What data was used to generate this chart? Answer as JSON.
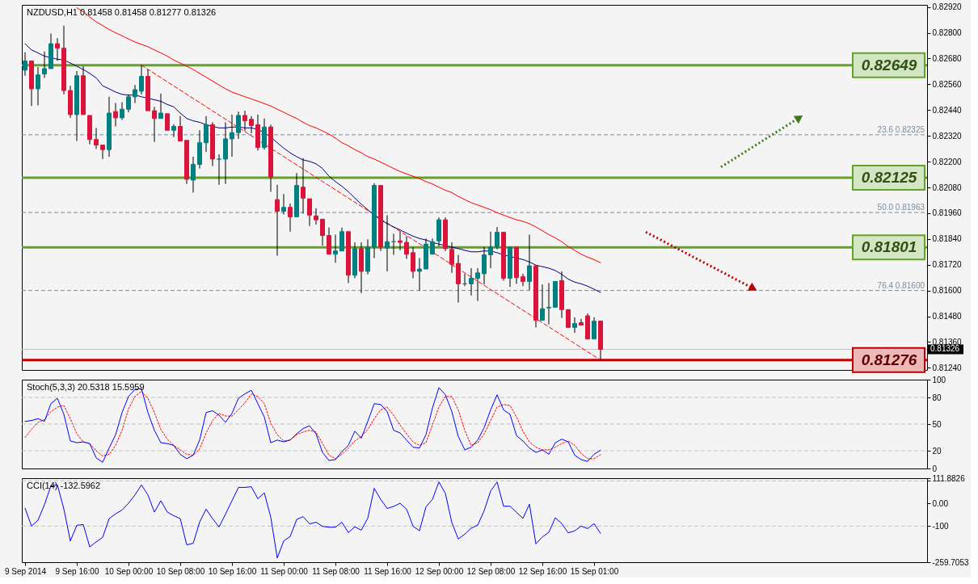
{
  "chart_data": [
    {
      "type": "candlestick",
      "title": "NZDUSD,H1 0.81458 0.81458 0.81277 0.81326",
      "categories": [
        null,
        null,
        null,
        null,
        null,
        null,
        null,
        null,
        null,
        null,
        null,
        null,
        null,
        null,
        null,
        null,
        null,
        null,
        null,
        null,
        null,
        null,
        null,
        null,
        null,
        null,
        null,
        null,
        null,
        null,
        null,
        null,
        null,
        null,
        null,
        null,
        null,
        null,
        null,
        null,
        null,
        null,
        null,
        null,
        null,
        null,
        null,
        null,
        null,
        null,
        null,
        null,
        null,
        null,
        null,
        null,
        null,
        null,
        null,
        null,
        null,
        null,
        null,
        null,
        null,
        null,
        null,
        null,
        null,
        null,
        null,
        null,
        null,
        null,
        null,
        null,
        null,
        null,
        null,
        null,
        null,
        null,
        null,
        null,
        null,
        null,
        null,
        null,
        null,
        null
      ],
      "ohlc": [
        [
          0.82626,
          0.82709,
          0.826,
          0.82669
        ],
        [
          0.82669,
          0.82669,
          0.82459,
          0.82539
        ],
        [
          0.82539,
          0.8264,
          0.82462,
          0.82604
        ],
        [
          0.82608,
          0.82713,
          0.8259,
          0.82633
        ],
        [
          0.82633,
          0.82796,
          0.82633,
          0.82749
        ],
        [
          0.82749,
          0.82775,
          0.82669,
          0.82728
        ],
        [
          0.82728,
          0.82833,
          0.82513,
          0.82531
        ],
        [
          0.82531,
          0.82553,
          0.82404,
          0.82419
        ],
        [
          0.82419,
          0.82622,
          0.82296,
          0.826
        ],
        [
          0.826,
          0.82644,
          0.82419,
          0.82419
        ],
        [
          0.82415,
          0.82415,
          0.82281,
          0.82303
        ],
        [
          0.82303,
          0.82357,
          0.82259,
          0.82277
        ],
        [
          0.82277,
          0.82277,
          0.82212,
          0.82256
        ],
        [
          0.82256,
          0.82502,
          0.82223,
          0.82426
        ],
        [
          0.82433,
          0.82473,
          0.82364,
          0.82404
        ],
        [
          0.82404,
          0.82477,
          0.82394,
          0.82444
        ],
        [
          0.82444,
          0.82513,
          0.8243,
          0.82502
        ],
        [
          0.82502,
          0.82557,
          0.82473,
          0.82535
        ],
        [
          0.82528,
          0.82649,
          0.82513,
          0.82597
        ],
        [
          0.82597,
          0.82629,
          0.82437,
          0.82437
        ],
        [
          0.82437,
          0.82455,
          0.82292,
          0.82401
        ],
        [
          0.82401,
          0.82517,
          0.82401,
          0.82426
        ],
        [
          0.82423,
          0.82423,
          0.82346,
          0.82346
        ],
        [
          0.82346,
          0.82374,
          0.82314,
          0.82364
        ],
        [
          0.82364,
          0.82412,
          0.82296,
          0.82296
        ],
        [
          0.82299,
          0.82299,
          0.82096,
          0.82118
        ],
        [
          0.82114,
          0.82223,
          0.82056,
          0.82187
        ],
        [
          0.82187,
          0.82346,
          0.82168,
          0.82288
        ],
        [
          0.82288,
          0.82412,
          0.82245,
          0.82372
        ],
        [
          0.82372,
          0.82383,
          0.82179,
          0.82212
        ],
        [
          0.82212,
          0.82234,
          0.82092,
          0.82212
        ],
        [
          0.82212,
          0.82383,
          0.82096,
          0.82306
        ],
        [
          0.82306,
          0.82419,
          0.82223,
          0.82335
        ],
        [
          0.82335,
          0.82433,
          0.82306,
          0.82415
        ],
        [
          0.82415,
          0.82437,
          0.82343,
          0.8239
        ],
        [
          0.82397,
          0.82412,
          0.82332,
          0.82368
        ],
        [
          0.82372,
          0.82419,
          0.82252,
          0.82266
        ],
        [
          0.82266,
          0.82401,
          0.82256,
          0.82361
        ],
        [
          0.82361,
          0.82372,
          0.8206,
          0.82129
        ],
        [
          0.82023,
          0.82092,
          0.81762,
          0.81969
        ],
        [
          0.81969,
          0.82049,
          0.81954,
          0.81987
        ],
        [
          0.81987,
          0.82005,
          0.81874,
          0.81943
        ],
        [
          0.81943,
          0.82147,
          0.81943,
          0.82089
        ],
        [
          0.82081,
          0.82216,
          0.81958,
          0.8203
        ],
        [
          0.82027,
          0.82027,
          0.819,
          0.81951
        ],
        [
          0.81947,
          0.81983,
          0.81907,
          0.81929
        ],
        [
          0.81932,
          0.81932,
          0.81809,
          0.81856
        ],
        [
          0.81856,
          0.81893,
          0.81769,
          0.81769
        ],
        [
          0.81769,
          0.8186,
          0.81729,
          0.81784
        ],
        [
          0.81784,
          0.81893,
          0.81784,
          0.81874
        ],
        [
          0.81874,
          0.81874,
          0.81635,
          0.81671
        ],
        [
          0.81671,
          0.81824,
          0.81657,
          0.81795
        ],
        [
          0.81795,
          0.81824,
          0.81588,
          0.81689
        ],
        [
          0.81689,
          0.81838,
          0.81675,
          0.81802
        ],
        [
          0.81802,
          0.82099,
          0.81751,
          0.82089
        ],
        [
          0.82089,
          0.82089,
          0.81784,
          0.81802
        ],
        [
          0.81798,
          0.81951,
          0.81689,
          0.81827
        ],
        [
          0.81827,
          0.81864,
          0.81766,
          0.81827
        ],
        [
          0.81831,
          0.81874,
          0.81787,
          0.81824
        ],
        [
          0.81824,
          0.81853,
          0.81747,
          0.81769
        ],
        [
          0.81776,
          0.81802,
          0.81657,
          0.81689
        ],
        [
          0.81689,
          0.81751,
          0.81599,
          0.817
        ],
        [
          0.817,
          0.81842,
          0.817,
          0.81816
        ],
        [
          0.81769,
          0.81842,
          0.81769,
          0.81827
        ],
        [
          0.81831,
          0.8194,
          0.81805,
          0.81929
        ],
        [
          0.81929,
          0.8194,
          0.81784,
          0.81795
        ],
        [
          0.81791,
          0.81824,
          0.81682,
          0.81722
        ],
        [
          0.81726,
          0.81766,
          0.81544,
          0.81631
        ],
        [
          0.81631,
          0.81678,
          0.8162,
          0.81631
        ],
        [
          0.81631,
          0.81704,
          0.81577,
          0.81657
        ],
        [
          0.81657,
          0.81704,
          0.81551,
          0.81682
        ],
        [
          0.81678,
          0.81802,
          0.81628,
          0.81766
        ],
        [
          0.81766,
          0.81874,
          0.81704,
          0.81802
        ],
        [
          0.81802,
          0.81896,
          0.81792,
          0.81871
        ],
        [
          0.81871,
          0.81871,
          0.81646,
          0.81657
        ],
        [
          0.81657,
          0.81802,
          0.81617,
          0.81802
        ],
        [
          0.81802,
          0.81802,
          0.81631,
          0.8166
        ],
        [
          0.81664,
          0.81678,
          0.8162,
          0.81642
        ],
        [
          0.81642,
          0.8186,
          0.81602,
          0.81715
        ],
        [
          0.81715,
          0.81715,
          0.81428,
          0.81461
        ],
        [
          0.81461,
          0.81628,
          0.81461,
          0.81515
        ],
        [
          0.81519,
          0.81635,
          0.81442,
          0.81522
        ],
        [
          0.81522,
          0.81642,
          0.81522,
          0.81642
        ],
        [
          0.81646,
          0.81689,
          0.81472,
          0.81511
        ],
        [
          0.81511,
          0.81511,
          0.81428,
          0.81428
        ],
        [
          0.81428,
          0.81475,
          0.81403,
          0.81446
        ],
        [
          0.8145,
          0.81468,
          0.81439,
          0.81439
        ],
        [
          0.81482,
          0.81493,
          0.81374,
          0.81374
        ],
        [
          0.81374,
          0.81475,
          0.81374,
          0.81457
        ],
        [
          0.81458,
          0.81458,
          0.81277,
          0.81326
        ]
      ],
      "colors": [
        "#008080",
        "#dc143c",
        "#008080",
        "#008080",
        "#008080",
        "#dc143c",
        "#dc143c",
        "#dc143c",
        "#008080",
        "#dc143c",
        "#dc143c",
        "#dc143c",
        "#dc143c",
        "#008080",
        "#dc143c",
        "#008080",
        "#008080",
        "#008080",
        "#008080",
        "#dc143c",
        "#dc143c",
        "#008080",
        "#dc143c",
        "#008080",
        "#dc143c",
        "#dc143c",
        "#008080",
        "#008080",
        "#008080",
        "#dc143c",
        "#008080",
        "#008080",
        "#008080",
        "#008080",
        "#dc143c",
        "#dc143c",
        "#dc143c",
        "#008080",
        "#dc143c",
        "#dc143c",
        "#008080",
        "#dc143c",
        "#008080",
        "#dc143c",
        "#dc143c",
        "#dc143c",
        "#dc143c",
        "#dc143c",
        "#008080",
        "#008080",
        "#dc143c",
        "#008080",
        "#dc143c",
        "#008080",
        "#008080",
        "#dc143c",
        "#008080",
        "#008080",
        "#dc143c",
        "#dc143c",
        "#dc143c",
        "#008080",
        "#008080",
        "#008080",
        "#008080",
        "#dc143c",
        "#dc143c",
        "#dc143c",
        "#008080",
        "#008080",
        "#008080",
        "#008080",
        "#008080",
        "#008080",
        "#dc143c",
        "#008080",
        "#dc143c",
        "#dc143c",
        "#008080",
        "#dc143c",
        "#008080",
        "#008080",
        "#008080",
        "#dc143c",
        "#dc143c",
        "#008080",
        "#dc143c",
        "#dc143c",
        "#008080",
        "#dc143c"
      ],
      "series": [
        {
          "type": "line",
          "color": "#000080",
          "values": [
            0.82749,
            0.8272,
            0.82706,
            0.82691,
            0.82684,
            0.82677,
            0.82673,
            0.82659,
            0.82644,
            0.82629,
            0.82611,
            0.8259,
            0.82553,
            0.82539,
            0.82524,
            0.82513,
            0.8251,
            0.8251,
            0.82502,
            0.82495,
            0.82488,
            0.82481,
            0.82466,
            0.82455,
            0.82426,
            0.82401,
            0.8239,
            0.82383,
            0.82372,
            0.82364,
            0.82357,
            0.82357,
            0.82361,
            0.82361,
            0.82357,
            0.82357,
            0.8235,
            0.82335,
            0.82314,
            0.82288,
            0.82263,
            0.82241,
            0.82223,
            0.82208,
            0.82201,
            0.8219,
            0.82168,
            0.82132,
            0.82107,
            0.82085,
            0.8206,
            0.8203,
            0.82002,
            0.81976,
            0.81951,
            0.81929,
            0.81911,
            0.81896,
            0.81882,
            0.81867,
            0.81853,
            0.81842,
            0.81835,
            0.81824,
            0.81816,
            0.81809,
            0.81802,
            0.81795,
            0.81787,
            0.8178,
            0.8178,
            0.81784,
            0.81784,
            0.81776,
            0.81766,
            0.81758,
            0.81751,
            0.81744,
            0.81733,
            0.81718,
            0.81711,
            0.81704,
            0.81693,
            0.81675,
            0.81653,
            0.81639,
            0.81631,
            0.8162,
            0.81606,
            0.81591
          ]
        },
        {
          "type": "line",
          "color": "#ff0000",
          "values": [
            null,
            null,
            null,
            null,
            null,
            null,
            null,
            null,
            0.82916,
            0.82898,
            0.82873,
            0.82851,
            0.82833,
            0.82815,
            0.828,
            0.82786,
            0.82771,
            0.82757,
            0.82746,
            0.82735,
            0.8272,
            0.82706,
            0.82691,
            0.82673,
            0.82659,
            0.82644,
            0.82629,
            0.82611,
            0.82593,
            0.82575,
            0.82557,
            0.82539,
            0.82524,
            0.82513,
            0.82502,
            0.82492,
            0.82481,
            0.8247,
            0.82459,
            0.82444,
            0.8243,
            0.82415,
            0.82401,
            0.82383,
            0.82368,
            0.82357,
            0.82343,
            0.82328,
            0.8231,
            0.82288,
            0.82274,
            0.82256,
            0.82241,
            0.82223,
            0.82212,
            0.82198,
            0.82183,
            0.82168,
            0.82154,
            0.82143,
            0.82132,
            0.82121,
            0.82107,
            0.82096,
            0.82081,
            0.82067,
            0.82056,
            0.82038,
            0.82023,
            0.82009,
            0.81998,
            0.81987,
            0.81976,
            0.81962,
            0.81951,
            0.8194,
            0.81929,
            0.81922,
            0.81911,
            0.81896,
            0.81878,
            0.8186,
            0.81845,
            0.81827,
            0.81805,
            0.81787,
            0.81769,
            0.81755,
            0.81744,
            0.81729
          ]
        },
        {
          "type": "line",
          "color": "#ff0000",
          "line_style": "dashed",
          "values": [
            null,
            null,
            null,
            null,
            null,
            null,
            null,
            null,
            null,
            null,
            null,
            null,
            null,
            null,
            null,
            null,
            null,
            null,
            0.82649,
            null,
            null,
            null,
            null,
            null,
            null,
            null,
            null,
            null,
            null,
            null,
            null,
            null,
            null,
            null,
            null,
            null,
            null,
            null,
            null,
            null,
            null,
            null,
            null,
            null,
            null,
            null,
            null,
            null,
            null,
            null,
            null,
            null,
            null,
            null,
            null,
            null,
            null,
            null,
            null,
            null,
            null,
            null,
            null,
            null,
            null,
            null,
            null,
            null,
            null,
            null,
            null,
            null,
            null,
            null,
            null,
            null,
            null,
            null,
            null,
            null,
            null,
            null,
            null,
            null,
            null,
            null,
            null,
            null,
            null,
            0.81276
          ]
        }
      ],
      "ylim": [
        0.8123,
        0.8293
      ],
      "yticks": [
        {
          "value": 0.8292,
          "label": "0.82920"
        },
        {
          "value": 0.828,
          "label": "0.82800"
        },
        {
          "value": 0.8268,
          "label": "0.82680"
        },
        {
          "value": 0.8256,
          "label": "0.82560"
        },
        {
          "value": 0.8244,
          "label": "0.82440"
        },
        {
          "value": 0.8232,
          "label": "0.82320"
        },
        {
          "value": 0.822,
          "label": "0.82200"
        },
        {
          "value": 0.8208,
          "label": "0.82080"
        },
        {
          "value": 0.8196,
          "label": "0.81960"
        },
        {
          "value": 0.8184,
          "label": "0.81840"
        },
        {
          "value": 0.8172,
          "label": "0.81720"
        },
        {
          "value": 0.816,
          "label": "0.81600"
        },
        {
          "value": 0.8148,
          "label": "0.81480"
        },
        {
          "value": 0.8136,
          "label": "0.81360"
        },
        {
          "value": 0.8124,
          "label": "0.81240"
        }
      ],
      "ref_lines": [
        {
          "axis": "y",
          "value": 0.82649,
          "label": "0.82649",
          "color": "#62a229",
          "line_style": "solid"
        },
        {
          "axis": "y",
          "value": 0.82125,
          "label": "0.82125",
          "color": "#62a229",
          "line_style": "solid"
        },
        {
          "axis": "y",
          "value": 0.81801,
          "label": "0.81801",
          "color": "#62a229",
          "line_style": "solid"
        },
        {
          "axis": "y",
          "value": 0.81276,
          "label": "0.81276",
          "color": "#c00000",
          "line_style": "solid"
        },
        {
          "axis": "y",
          "value": 0.82325,
          "label": "23.6 0.82325",
          "color": "#7b8ca0",
          "line_style": "dashed"
        },
        {
          "axis": "y",
          "value": 0.81963,
          "label": "50.0 0.81963",
          "color": "#7b8ca0",
          "line_style": "dashed"
        },
        {
          "axis": "y",
          "value": 0.816,
          "label": "76.4 0.81600",
          "color": "#7b8ca0",
          "line_style": "dashed"
        },
        {
          "axis": "y",
          "value": 0.81326,
          "label": "0.81326",
          "color": "#c0c0c0",
          "line_style": "solid"
        }
      ],
      "tick_labels": "y"
    },
    {
      "type": "line",
      "title": "Stoch(5,3,3) 20.5318 15.5959",
      "categories": [
        null,
        null,
        null,
        null,
        null,
        null,
        null,
        null,
        null,
        null,
        null,
        null,
        null,
        null,
        null,
        null,
        null,
        null,
        null,
        null,
        null,
        null,
        null,
        null,
        null,
        null,
        null,
        null,
        null,
        null,
        null,
        null,
        null,
        null,
        null,
        null,
        null,
        null,
        null,
        null,
        null,
        null,
        null,
        null,
        null,
        null,
        null,
        null,
        null,
        null,
        null,
        null,
        null,
        null,
        null,
        null,
        null,
        null,
        null,
        null,
        null,
        null,
        null,
        null,
        null,
        null,
        null,
        null,
        null,
        null,
        null,
        null,
        null,
        null,
        null,
        null,
        null,
        null,
        null,
        null,
        null,
        null,
        null,
        null,
        null,
        null,
        null,
        null,
        null,
        null
      ],
      "series": [
        {
          "color": "#0000ff",
          "values": [
            53,
            54,
            56,
            53,
            73,
            79,
            61,
            31,
            29,
            30,
            28,
            12,
            7,
            23,
            38,
            63,
            81,
            89,
            90,
            63,
            43,
            29,
            28,
            26,
            16,
            11,
            15,
            32,
            63,
            65,
            60,
            52,
            62,
            79,
            84,
            88,
            73,
            58,
            29,
            32,
            30,
            32,
            39,
            45,
            48,
            39,
            18,
            9,
            10,
            19,
            26,
            42,
            34,
            53,
            73,
            72,
            64,
            43,
            40,
            32,
            24,
            23,
            38,
            68,
            91,
            83,
            64,
            36,
            21,
            24,
            32,
            46,
            66,
            83,
            66,
            61,
            37,
            31,
            23,
            18,
            21,
            16,
            29,
            33,
            30,
            15,
            10,
            8,
            16,
            20.5318
          ]
        },
        {
          "color": "#ff0000",
          "line_style": "dotted",
          "values": [
            35,
            44,
            52,
            55,
            64,
            69,
            71,
            56,
            39,
            30,
            28,
            20,
            14,
            16,
            26,
            43,
            67,
            81,
            87,
            79,
            63,
            44,
            33,
            26,
            21,
            16,
            15,
            22,
            40,
            54,
            62,
            59,
            59,
            66,
            74,
            84,
            81,
            73,
            51,
            38,
            31,
            32,
            38,
            41,
            43,
            41,
            28,
            15,
            11,
            16,
            23,
            31,
            36,
            44,
            56,
            66,
            69,
            60,
            49,
            39,
            30,
            26,
            29,
            49,
            69,
            81,
            81,
            66,
            43,
            26,
            29,
            39,
            54,
            69,
            72,
            71,
            58,
            42,
            30,
            24,
            21,
            21,
            24,
            28,
            31,
            26,
            17,
            11,
            11,
            15.5959
          ]
        }
      ],
      "ylim": [
        0,
        100
      ],
      "yticks": [
        100,
        80,
        50,
        20,
        0
      ],
      "ref_lines": [
        {
          "axis": "y",
          "value": 80,
          "color": "#c0c0c0",
          "line_style": "dashed"
        },
        {
          "axis": "y",
          "value": 50,
          "color": "#c0c0c0",
          "line_style": "dashed"
        },
        {
          "axis": "y",
          "value": 20,
          "color": "#c0c0c0",
          "line_style": "dashed"
        }
      ],
      "tick_labels": "y"
    },
    {
      "type": "line",
      "title": "CCI(14) -132.5962",
      "categories": [
        "9 Sep 2014",
        null,
        null,
        null,
        null,
        null,
        null,
        null,
        "9 Sep 16:00",
        null,
        null,
        null,
        null,
        null,
        null,
        null,
        "10 Sep 00:00",
        null,
        null,
        null,
        null,
        null,
        null,
        null,
        "10 Sep 08:00",
        null,
        null,
        null,
        null,
        null,
        null,
        null,
        "10 Sep 16:00",
        null,
        null,
        null,
        null,
        null,
        null,
        null,
        "11 Sep 00:00",
        null,
        null,
        null,
        null,
        null,
        null,
        null,
        "11 Sep 08:00",
        null,
        null,
        null,
        null,
        null,
        null,
        null,
        "11 Sep 16:00",
        null,
        null,
        null,
        null,
        null,
        null,
        null,
        "12 Sep 00:00",
        null,
        null,
        null,
        null,
        null,
        null,
        null,
        "12 Sep 08:00",
        null,
        null,
        null,
        null,
        null,
        null,
        null,
        "12 Sep 16:00",
        null,
        null,
        null,
        null,
        null,
        null,
        null,
        "15 Sep 01:00",
        null
      ],
      "series": [
        {
          "color": "#0000ff",
          "values": [
            -21,
            -100,
            -74,
            -5,
            78,
            82,
            -24,
            -166,
            -97,
            -93,
            -192,
            -170,
            -150,
            -67,
            -46,
            -29,
            1,
            38,
            82,
            38,
            -38,
            12,
            -38,
            -54,
            -67,
            -183,
            -176,
            -82,
            -25,
            -67,
            -104,
            -47,
            12,
            71,
            71,
            74,
            21,
            47,
            -61,
            -241,
            -166,
            -146,
            -71,
            -58,
            -90,
            -83,
            -101,
            -105,
            -105,
            -83,
            -129,
            -103,
            -118,
            -65,
            67,
            18,
            -22,
            -13,
            1,
            -25,
            -100,
            -121,
            -15,
            18,
            95,
            45,
            -84,
            -157,
            -136,
            -109,
            -96,
            -32,
            55,
            95,
            -12,
            -12,
            -39,
            -66,
            -3,
            -179,
            -148,
            -128,
            -63,
            -89,
            -130,
            -121,
            -100,
            -111,
            -89,
            -132.5962
          ]
        }
      ],
      "ylim": [
        -259.7053,
        111.8826
      ],
      "yticks": [
        111.8826,
        {
          "value": 100,
          "label": null
        },
        {
          "value": 0,
          "label": "0.00"
        },
        -100,
        -259.7053
      ],
      "ref_lines": [
        {
          "axis": "y",
          "value": 100,
          "color": "#c0c0c0",
          "line_style": "dashed"
        },
        {
          "axis": "y",
          "value": -100,
          "color": "#c0c0c0",
          "line_style": "dashed"
        }
      ]
    }
  ]
}
